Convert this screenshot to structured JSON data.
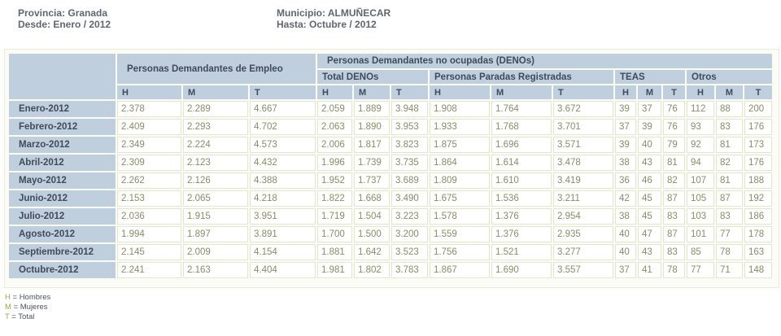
{
  "header": {
    "provincia": "Provincia: Granada",
    "desde": "Desde: Enero / 2012",
    "municipio": "Municipio: ALMUÑECAR",
    "hasta": "Hasta: Octubre / 2012"
  },
  "table": {
    "group_demandantes": "Personas Demandantes de Empleo",
    "group_denos": "Personas Demandantes no ocupadas (DENOs)",
    "sub_total_denos": "Total DENOs",
    "sub_parados": "Personas Paradas Registradas",
    "sub_teas": "TEAS",
    "sub_otros": "Otros",
    "col_h": "H",
    "col_m": "M",
    "col_t": "T",
    "rows": [
      {
        "label": "Enero-2012",
        "v": [
          "2.378",
          "2.289",
          "4.667",
          "2.059",
          "1.889",
          "3.948",
          "1.908",
          "1.764",
          "3.672",
          "39",
          "37",
          "76",
          "112",
          "88",
          "200"
        ]
      },
      {
        "label": "Febrero-2012",
        "v": [
          "2.409",
          "2.293",
          "4.702",
          "2.063",
          "1.890",
          "3.953",
          "1.933",
          "1.768",
          "3.701",
          "37",
          "39",
          "76",
          "93",
          "83",
          "176"
        ]
      },
      {
        "label": "Marzo-2012",
        "v": [
          "2.349",
          "2.224",
          "4.573",
          "2.006",
          "1.817",
          "3.823",
          "1.875",
          "1.696",
          "3.571",
          "39",
          "40",
          "79",
          "92",
          "81",
          "173"
        ]
      },
      {
        "label": "Abril-2012",
        "v": [
          "2.309",
          "2.123",
          "4.432",
          "1.996",
          "1.739",
          "3.735",
          "1.864",
          "1.614",
          "3.478",
          "38",
          "43",
          "81",
          "94",
          "82",
          "176"
        ]
      },
      {
        "label": "Mayo-2012",
        "v": [
          "2.262",
          "2.126",
          "4.388",
          "1.952",
          "1.737",
          "3.689",
          "1.809",
          "1.610",
          "3.419",
          "36",
          "46",
          "82",
          "107",
          "81",
          "188"
        ]
      },
      {
        "label": "Junio-2012",
        "v": [
          "2.153",
          "2.065",
          "4.218",
          "1.822",
          "1.668",
          "3.490",
          "1.675",
          "1.536",
          "3.211",
          "42",
          "45",
          "87",
          "105",
          "87",
          "192"
        ]
      },
      {
        "label": "Julio-2012",
        "v": [
          "2.036",
          "1.915",
          "3.951",
          "1.719",
          "1.504",
          "3.223",
          "1.578",
          "1.376",
          "2.954",
          "38",
          "45",
          "83",
          "103",
          "83",
          "186"
        ]
      },
      {
        "label": "Agosto-2012",
        "v": [
          "1.994",
          "1.897",
          "3.891",
          "1.700",
          "1.500",
          "3.200",
          "1.559",
          "1.376",
          "2.935",
          "40",
          "47",
          "87",
          "101",
          "77",
          "178"
        ]
      },
      {
        "label": "Septiembre-2012",
        "v": [
          "2.145",
          "2.009",
          "4.154",
          "1.881",
          "1.642",
          "3.523",
          "1.756",
          "1.521",
          "3.277",
          "40",
          "43",
          "83",
          "85",
          "78",
          "163"
        ]
      },
      {
        "label": "Octubre-2012",
        "v": [
          "2.241",
          "2.163",
          "4.404",
          "1.981",
          "1.802",
          "3.783",
          "1.867",
          "1.690",
          "3.557",
          "37",
          "41",
          "78",
          "77",
          "71",
          "148"
        ]
      }
    ]
  },
  "legend": [
    {
      "key": "H",
      "text": " = Hombres"
    },
    {
      "key": "M",
      "text": " = Mujeres"
    },
    {
      "key": "T",
      "text": " = Total"
    }
  ],
  "colors": {
    "header_bg": "#c0cfde",
    "header_text": "#3f4a5a",
    "cell_border": "#e3e6cf",
    "cell_text": "#8a8c66",
    "legend_key": "#a0a34a"
  }
}
